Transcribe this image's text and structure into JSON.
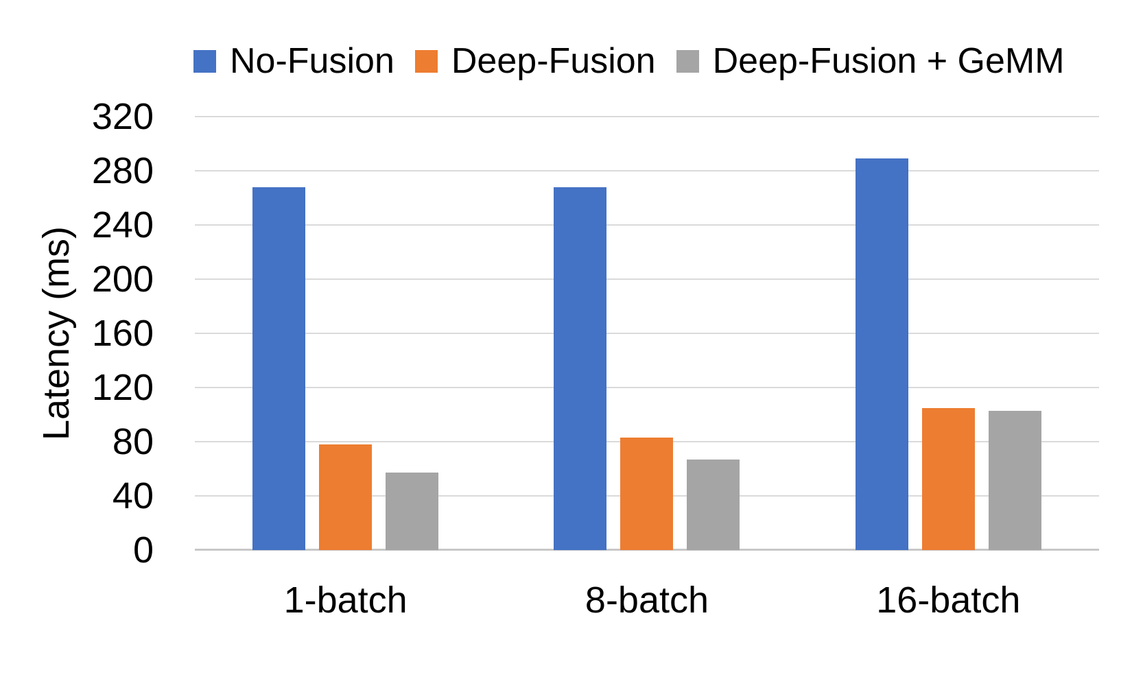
{
  "chart_data": {
    "type": "bar",
    "title": "",
    "categories": [
      "1-batch",
      "8-batch",
      "16-batch"
    ],
    "series": [
      {
        "name": "No-Fusion",
        "color": "#4472C4",
        "values": [
          268,
          268,
          289
        ]
      },
      {
        "name": "Deep-Fusion",
        "color": "#ED7D31",
        "values": [
          78,
          83,
          105
        ]
      },
      {
        "name": "Deep-Fusion + GeMM",
        "color": "#A5A5A5",
        "values": [
          57,
          67,
          103
        ]
      }
    ],
    "xlabel": "",
    "ylabel": "Latency (ms)",
    "ylim": [
      0,
      320
    ],
    "yticks": [
      0,
      40,
      80,
      120,
      160,
      200,
      240,
      280,
      320
    ],
    "grid": true,
    "legend_position": "top",
    "background": "#FFFFFF"
  },
  "colors": {
    "gridline": "#DADADA",
    "axis_line": "#C8C8C8",
    "text": "#000000"
  }
}
